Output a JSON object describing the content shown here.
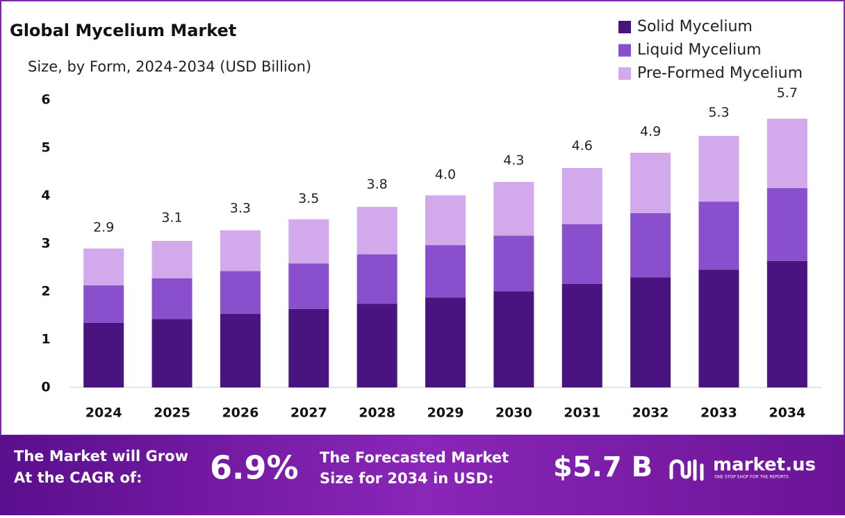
{
  "chart_data": {
    "type": "stacked-bar",
    "title": "Global Mycelium Market",
    "subtitle": "Size, by Form, 2024-2034 (USD Billion)",
    "categories": [
      "2024",
      "2025",
      "2026",
      "2027",
      "2028",
      "2029",
      "2030",
      "2031",
      "2032",
      "2033",
      "2034"
    ],
    "series": [
      {
        "name": "Solid Mycelium",
        "color": "#4a1480",
        "values": [
          1.35,
          1.43,
          1.54,
          1.64,
          1.75,
          1.88,
          2.01,
          2.16,
          2.3,
          2.46,
          2.64
        ]
      },
      {
        "name": "Liquid Mycelium",
        "color": "#8a4fcc",
        "values": [
          0.78,
          0.85,
          0.89,
          0.95,
          1.03,
          1.09,
          1.16,
          1.25,
          1.34,
          1.42,
          1.52
        ]
      },
      {
        "name": "Pre-Formed Mycelium",
        "color": "#d2a9ea",
        "values": [
          0.77,
          0.78,
          0.85,
          0.92,
          0.99,
          1.04,
          1.12,
          1.17,
          1.26,
          1.37,
          1.45
        ]
      }
    ],
    "totals": {
      "values": [
        2.9,
        3.1,
        3.3,
        3.5,
        3.8,
        4.0,
        4.3,
        4.6,
        4.9,
        5.3,
        5.7
      ],
      "value_labels": [
        "2.9",
        "3.1",
        "3.3",
        "3.5",
        "3.8",
        "4.0",
        "4.3",
        "4.6",
        "4.9",
        "5.3",
        "5.7"
      ]
    },
    "ylim": [
      0,
      6
    ],
    "yticks": [
      0,
      1,
      2,
      3,
      4,
      5,
      6
    ],
    "grid": false,
    "legend": "top-right"
  },
  "footer": {
    "cagr_label": [
      "The Market will Grow",
      "At the CAGR of:"
    ],
    "cagr": "6.9%",
    "forecast_label": [
      "The Forecasted Market",
      "Size for 2034 in USD:"
    ],
    "forecast_value": "$5.7 B",
    "brand": "market.us",
    "tagline": "ONE STOP SHOP FOR THE REPORTS"
  }
}
